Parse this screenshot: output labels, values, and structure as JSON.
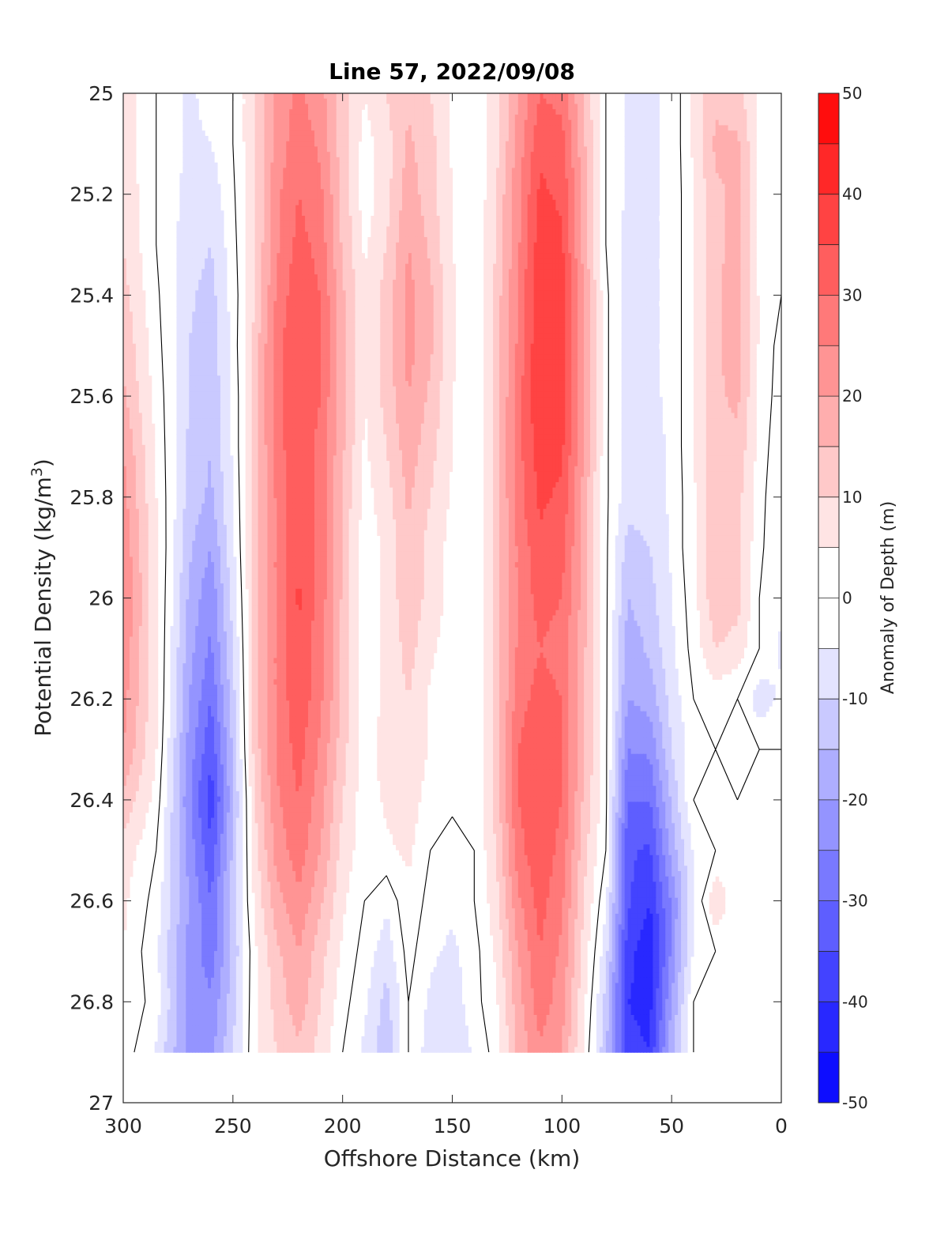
{
  "chart_data": {
    "type": "heatmap",
    "title": "Line 57, 2022/09/08",
    "xlabel": "Offshore Distance (km)",
    "ylabel_prefix": "Potential Density (kg/m",
    "ylabel_sup": "3",
    "ylabel_suffix": ")",
    "colorbar_label": "Anomaly of Depth (m)",
    "xlim": [
      300,
      0
    ],
    "ylim": [
      25,
      27
    ],
    "x_ticks": [
      "300",
      "250",
      "200",
      "150",
      "100",
      "50",
      "0"
    ],
    "x_tick_values": [
      300,
      250,
      200,
      150,
      100,
      50,
      0
    ],
    "y_ticks": [
      "25",
      "25.2",
      "25.4",
      "25.6",
      "25.8",
      "26",
      "26.2",
      "26.4",
      "26.6",
      "26.8",
      "27"
    ],
    "y_tick_values": [
      25,
      25.2,
      25.4,
      25.6,
      25.8,
      26,
      26.2,
      26.4,
      26.6,
      26.8,
      27
    ],
    "colorbar_ticks": [
      "50",
      "40",
      "30",
      "20",
      "10",
      "0",
      "-10",
      "-20",
      "-30",
      "-40",
      "-50"
    ],
    "colorbar_tick_values": [
      50,
      40,
      30,
      20,
      10,
      0,
      -10,
      -20,
      -30,
      -40,
      -50
    ],
    "clim": [
      -50,
      50
    ],
    "contour_interval": 5,
    "zero_contour_color": "#000000",
    "positive_color": "#ff0000",
    "negative_color": "#0000ff",
    "neutral_color": "#ffffff",
    "data_density_limit": 26.9,
    "grid_x_km": [
      300,
      285,
      270,
      260,
      250,
      240,
      230,
      220,
      210,
      200,
      190,
      180,
      170,
      160,
      150,
      140,
      130,
      120,
      110,
      100,
      90,
      80,
      70,
      60,
      50,
      40,
      30,
      20,
      10,
      0
    ],
    "grid_density": [
      25.0,
      25.1,
      25.2,
      25.3,
      25.4,
      25.5,
      25.6,
      25.7,
      25.8,
      25.9,
      26.0,
      26.1,
      26.2,
      26.3,
      26.4,
      26.5,
      26.6,
      26.7,
      26.8,
      26.9
    ],
    "anomaly_m": [
      [
        8,
        0,
        -6,
        -3,
        0,
        10,
        22,
        26,
        22,
        12,
        5,
        10,
        14,
        10,
        4,
        0,
        8,
        20,
        30,
        28,
        15,
        0,
        -6,
        -6,
        -4,
        6,
        14,
        12,
        4,
        0
      ],
      [
        8,
        0,
        -6,
        -5,
        0,
        10,
        22,
        28,
        24,
        12,
        3,
        8,
        16,
        12,
        4,
        0,
        8,
        22,
        34,
        32,
        16,
        0,
        -6,
        -6,
        -4,
        6,
        16,
        16,
        4,
        0
      ],
      [
        9,
        0,
        -7,
        -8,
        -1,
        10,
        24,
        30,
        26,
        14,
        2,
        8,
        18,
        12,
        5,
        0,
        10,
        24,
        36,
        34,
        18,
        0,
        -6,
        -6,
        -4,
        5,
        14,
        16,
        4,
        0
      ],
      [
        10,
        0,
        -8,
        -10,
        -2,
        10,
        24,
        32,
        28,
        14,
        4,
        10,
        20,
        14,
        5,
        0,
        10,
        24,
        38,
        36,
        18,
        0,
        -7,
        -6,
        -4,
        5,
        14,
        16,
        4,
        0
      ],
      [
        12,
        1,
        -9,
        -12,
        -3,
        10,
        26,
        34,
        30,
        16,
        6,
        12,
        22,
        16,
        6,
        1,
        12,
        26,
        40,
        38,
        20,
        1,
        -7,
        -6,
        -4,
        5,
        14,
        18,
        4,
        0
      ],
      [
        14,
        2,
        -10,
        -13,
        -3,
        12,
        28,
        35,
        30,
        16,
        6,
        12,
        22,
        16,
        6,
        1,
        12,
        26,
        40,
        38,
        20,
        1,
        -7,
        -6,
        -4,
        5,
        14,
        18,
        4,
        -2
      ],
      [
        16,
        3,
        -10,
        -14,
        -4,
        12,
        28,
        35,
        30,
        16,
        5,
        12,
        20,
        14,
        5,
        1,
        12,
        28,
        40,
        38,
        20,
        1,
        -7,
        -6,
        -4,
        5,
        14,
        16,
        4,
        -3
      ],
      [
        20,
        4,
        -11,
        -15,
        -4,
        12,
        28,
        34,
        28,
        16,
        4,
        10,
        18,
        12,
        5,
        1,
        12,
        28,
        38,
        36,
        20,
        1,
        -8,
        -7,
        -4,
        5,
        14,
        14,
        3,
        -4
      ],
      [
        22,
        5,
        -12,
        -16,
        -5,
        12,
        26,
        34,
        28,
        14,
        3,
        8,
        16,
        10,
        4,
        1,
        12,
        28,
        36,
        34,
        18,
        1,
        -8,
        -8,
        -4,
        4,
        14,
        12,
        2,
        -5
      ],
      [
        24,
        6,
        -14,
        -20,
        -6,
        12,
        26,
        34,
        28,
        14,
        2,
        6,
        14,
        8,
        3,
        1,
        12,
        26,
        34,
        32,
        18,
        1,
        -12,
        -10,
        -4,
        4,
        14,
        12,
        1,
        -4
      ],
      [
        26,
        6,
        -16,
        -24,
        -8,
        12,
        26,
        36,
        28,
        14,
        2,
        6,
        14,
        8,
        3,
        1,
        12,
        26,
        32,
        30,
        18,
        1,
        -15,
        -12,
        -5,
        3,
        14,
        12,
        0,
        -4
      ],
      [
        24,
        6,
        -18,
        -26,
        -10,
        12,
        26,
        34,
        26,
        14,
        2,
        6,
        12,
        6,
        2,
        1,
        12,
        26,
        30,
        28,
        16,
        1,
        -18,
        -14,
        -6,
        2,
        10,
        8,
        0,
        -6
      ],
      [
        22,
        6,
        -20,
        -30,
        -12,
        12,
        26,
        34,
        26,
        14,
        2,
        6,
        10,
        4,
        2,
        1,
        12,
        28,
        32,
        30,
        16,
        1,
        -20,
        -18,
        -8,
        0,
        2,
        0,
        -8,
        -4
      ],
      [
        20,
        5,
        -22,
        -34,
        -14,
        12,
        26,
        32,
        24,
        12,
        2,
        8,
        10,
        4,
        2,
        1,
        12,
        30,
        34,
        30,
        16,
        1,
        -25,
        -24,
        -10,
        -2,
        0,
        -4,
        0,
        0
      ],
      [
        14,
        3,
        -24,
        -38,
        -16,
        10,
        24,
        30,
        22,
        10,
        2,
        6,
        8,
        2,
        1,
        1,
        12,
        30,
        34,
        30,
        14,
        1,
        -30,
        -30,
        -14,
        0,
        0,
        0,
        0,
        0
      ],
      [
        8,
        0,
        -22,
        -34,
        -14,
        8,
        22,
        28,
        20,
        8,
        2,
        4,
        6,
        0,
        -2,
        0,
        10,
        28,
        34,
        28,
        12,
        0,
        -34,
        -36,
        -18,
        -4,
        0,
        0,
        0,
        0
      ],
      [
        6,
        -2,
        -20,
        -30,
        -12,
        6,
        18,
        24,
        16,
        6,
        0,
        -4,
        4,
        -2,
        -4,
        0,
        8,
        24,
        32,
        26,
        10,
        -4,
        -34,
        -40,
        -24,
        -6,
        10,
        0,
        0,
        0
      ],
      [
        5,
        -4,
        -22,
        -28,
        -14,
        4,
        14,
        20,
        12,
        4,
        -2,
        -8,
        2,
        -4,
        -6,
        -2,
        6,
        20,
        30,
        24,
        8,
        -8,
        -38,
        -44,
        -24,
        -4,
        0,
        0,
        0,
        0
      ],
      [
        4,
        -2,
        -22,
        -24,
        -12,
        4,
        12,
        18,
        10,
        2,
        -4,
        -12,
        0,
        -6,
        -8,
        -2,
        4,
        18,
        28,
        22,
        6,
        -12,
        -40,
        -42,
        -20,
        0,
        0,
        0,
        0,
        0
      ],
      [
        3,
        -6,
        -22,
        -22,
        -10,
        4,
        10,
        14,
        8,
        0,
        -6,
        -14,
        0,
        -8,
        -10,
        -4,
        2,
        16,
        24,
        20,
        4,
        -14,
        -38,
        -40,
        -16,
        0,
        0,
        0,
        0,
        0
      ]
    ]
  }
}
